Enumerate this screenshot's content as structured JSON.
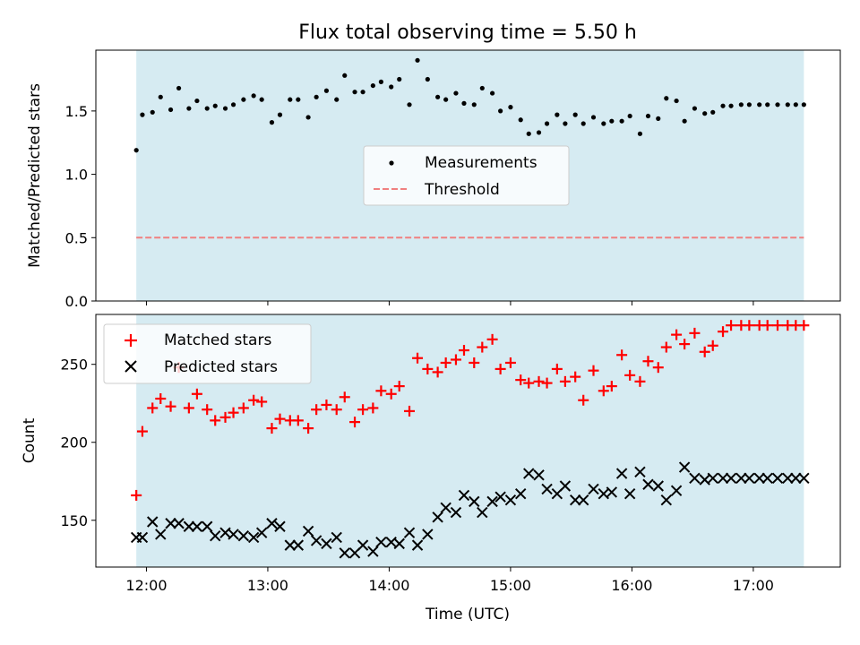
{
  "figure": {
    "title": "Flux total observing time = 5.50 h"
  },
  "colors": {
    "shade": "#add8e6",
    "threshold": "#f08080",
    "measurements": "#000000",
    "matched": "#ff0000",
    "predicted": "#000000"
  },
  "chart_data": [
    {
      "type": "scatter",
      "panel": "top",
      "title": "Flux total observing time = 5.50 h",
      "xlabel": "",
      "ylabel": "Matched/Predicted stars",
      "xlim": [
        "11:35",
        "17:43"
      ],
      "ylim": [
        0,
        1.98
      ],
      "yticks": [
        "0.0",
        "0.5",
        "1.0",
        "1.5"
      ],
      "xticks": [
        "12:00",
        "13:00",
        "14:00",
        "15:00",
        "16:00",
        "17:00"
      ],
      "shaded_span": [
        "11:55",
        "17:25"
      ],
      "legend_position": "center",
      "series": [
        {
          "name": "Measurements",
          "type": "scatter",
          "marker": "dot",
          "x": [
            "11:55",
            "11:58",
            "12:03",
            "12:07",
            "12:12",
            "12:16",
            "12:21",
            "12:25",
            "12:30",
            "12:34",
            "12:39",
            "12:43",
            "12:48",
            "12:53",
            "12:57",
            "13:02",
            "13:06",
            "13:11",
            "13:15",
            "13:20",
            "13:24",
            "13:29",
            "13:34",
            "13:38",
            "13:43",
            "13:47",
            "13:52",
            "13:56",
            "14:01",
            "14:05",
            "14:10",
            "14:14",
            "14:19",
            "14:24",
            "14:28",
            "14:33",
            "14:37",
            "14:42",
            "14:46",
            "14:51",
            "14:55",
            "15:00",
            "15:05",
            "15:09",
            "15:14",
            "15:18",
            "15:23",
            "15:27",
            "15:32",
            "15:36",
            "15:41",
            "15:46",
            "15:50",
            "15:55",
            "15:59",
            "16:04",
            "16:08",
            "16:13",
            "16:17",
            "16:22",
            "16:26",
            "16:31",
            "16:36",
            "16:40",
            "16:45",
            "16:49",
            "16:54",
            "16:58",
            "17:03",
            "17:07",
            "17:12",
            "17:17",
            "17:21",
            "17:25"
          ],
          "y": [
            1.19,
            1.47,
            1.49,
            1.61,
            1.51,
            1.68,
            1.52,
            1.58,
            1.52,
            1.54,
            1.52,
            1.55,
            1.59,
            1.62,
            1.59,
            1.41,
            1.47,
            1.59,
            1.59,
            1.45,
            1.61,
            1.66,
            1.59,
            1.78,
            1.65,
            1.65,
            1.7,
            1.73,
            1.69,
            1.75,
            1.55,
            1.9,
            1.75,
            1.61,
            1.59,
            1.64,
            1.56,
            1.55,
            1.68,
            1.64,
            1.5,
            1.53,
            1.43,
            1.32,
            1.33,
            1.4,
            1.47,
            1.4,
            1.47,
            1.4,
            1.45,
            1.4,
            1.42,
            1.42,
            1.46,
            1.32,
            1.46,
            1.44,
            1.6,
            1.58,
            1.42,
            1.52,
            1.48,
            1.49,
            1.54,
            1.54,
            1.55,
            1.55,
            1.55,
            1.55,
            1.55,
            1.55,
            1.55,
            1.55
          ]
        },
        {
          "name": "Threshold",
          "type": "line",
          "style": "dashed",
          "x": [
            "11:55",
            "17:25"
          ],
          "y": [
            0.5,
            0.5
          ]
        }
      ]
    },
    {
      "type": "scatter",
      "panel": "bottom",
      "xlabel": "Time (UTC)",
      "ylabel": "Count",
      "xlim": [
        "11:35",
        "17:43"
      ],
      "ylim": [
        120,
        282
      ],
      "yticks": [
        "150",
        "200",
        "250"
      ],
      "xticks": [
        "12:00",
        "13:00",
        "14:00",
        "15:00",
        "16:00",
        "17:00"
      ],
      "shaded_span": [
        "11:55",
        "17:25"
      ],
      "legend_position": "top-left",
      "series": [
        {
          "name": "Matched stars",
          "marker": "plus",
          "x": [
            "11:55",
            "11:58",
            "12:03",
            "12:07",
            "12:12",
            "12:16",
            "12:21",
            "12:25",
            "12:30",
            "12:34",
            "12:39",
            "12:43",
            "12:48",
            "12:53",
            "12:57",
            "13:02",
            "13:06",
            "13:11",
            "13:15",
            "13:20",
            "13:24",
            "13:29",
            "13:34",
            "13:38",
            "13:43",
            "13:47",
            "13:52",
            "13:56",
            "14:01",
            "14:05",
            "14:10",
            "14:14",
            "14:19",
            "14:24",
            "14:28",
            "14:33",
            "14:37",
            "14:42",
            "14:46",
            "14:51",
            "14:55",
            "15:00",
            "15:05",
            "15:09",
            "15:14",
            "15:18",
            "15:23",
            "15:27",
            "15:32",
            "15:36",
            "15:41",
            "15:46",
            "15:50",
            "15:55",
            "15:59",
            "16:04",
            "16:08",
            "16:13",
            "16:17",
            "16:22",
            "16:26",
            "16:31",
            "16:36",
            "16:40",
            "16:45",
            "16:49",
            "16:54",
            "16:58",
            "17:03",
            "17:07",
            "17:12",
            "17:17",
            "17:21",
            "17:25"
          ],
          "y": [
            166,
            207,
            222,
            228,
            223,
            248,
            222,
            231,
            221,
            214,
            216,
            219,
            222,
            227,
            226,
            209,
            215,
            214,
            214,
            209,
            221,
            224,
            221,
            229,
            213,
            221,
            222,
            233,
            231,
            236,
            220,
            254,
            247,
            245,
            251,
            253,
            259,
            251,
            261,
            266,
            247,
            251,
            240,
            238,
            239,
            238,
            247,
            239,
            242,
            227,
            246,
            233,
            236,
            256,
            243,
            239,
            252,
            248,
            261,
            269,
            263,
            270,
            258,
            262,
            271,
            275,
            275,
            275,
            275,
            275,
            275,
            275,
            275,
            275
          ]
        },
        {
          "name": "Predicted stars",
          "marker": "x",
          "x": [
            "11:55",
            "11:58",
            "12:03",
            "12:07",
            "12:12",
            "12:16",
            "12:21",
            "12:25",
            "12:30",
            "12:34",
            "12:39",
            "12:43",
            "12:48",
            "12:53",
            "12:57",
            "13:02",
            "13:06",
            "13:11",
            "13:15",
            "13:20",
            "13:24",
            "13:29",
            "13:34",
            "13:38",
            "13:43",
            "13:47",
            "13:52",
            "13:56",
            "14:01",
            "14:05",
            "14:10",
            "14:14",
            "14:19",
            "14:24",
            "14:28",
            "14:33",
            "14:37",
            "14:42",
            "14:46",
            "14:51",
            "14:55",
            "15:00",
            "15:05",
            "15:09",
            "15:14",
            "15:18",
            "15:23",
            "15:27",
            "15:32",
            "15:36",
            "15:41",
            "15:46",
            "15:50",
            "15:55",
            "15:59",
            "16:04",
            "16:08",
            "16:13",
            "16:17",
            "16:22",
            "16:26",
            "16:31",
            "16:36",
            "16:40",
            "16:45",
            "16:49",
            "16:54",
            "16:58",
            "17:03",
            "17:07",
            "17:12",
            "17:17",
            "17:21",
            "17:25"
          ],
          "y": [
            139,
            139,
            149,
            141,
            148,
            148,
            146,
            146,
            146,
            140,
            142,
            141,
            140,
            139,
            142,
            148,
            146,
            134,
            134,
            143,
            137,
            135,
            139,
            129,
            129,
            134,
            130,
            136,
            136,
            135,
            142,
            134,
            141,
            152,
            158,
            155,
            166,
            162,
            155,
            162,
            165,
            163,
            167,
            180,
            179,
            170,
            167,
            172,
            163,
            163,
            170,
            167,
            168,
            180,
            167,
            181,
            173,
            172,
            163,
            169,
            184,
            177,
            176,
            177,
            177,
            177,
            177,
            177,
            177,
            177,
            177,
            177,
            177,
            177
          ]
        }
      ]
    }
  ]
}
